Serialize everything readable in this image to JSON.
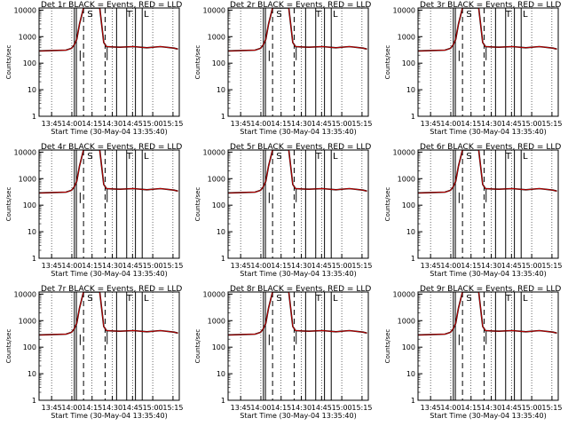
{
  "chart_data": [
    {
      "type": "line",
      "title": "Det 1r BLACK = Events, RED = LLD",
      "xlabel": "Start Time (30-May-04 13:35:40)",
      "ylabel": "Counts/sec",
      "x_tick_labels": [
        "13:45",
        "14:00",
        "14:15",
        "14:30",
        "14:45",
        "15:00",
        "15:15"
      ],
      "y_tick_labels": [
        "1",
        "10",
        "100",
        "1000",
        "10000"
      ],
      "scale": "log",
      "ylim": [
        1,
        12000
      ],
      "xlim_minutes_range": [
        "13:35:40",
        "15:20"
      ],
      "markers": [
        {
          "label": "S",
          "time": "14:09"
        },
        {
          "label": "T",
          "time": "14:40"
        },
        {
          "label": "L",
          "time": "14:55"
        }
      ],
      "grid": "dotted vertical lines at tick times",
      "series": [
        {
          "name": "Events",
          "color": "#000000"
        },
        {
          "name": "LLD",
          "color": "#cc0000"
        }
      ]
    },
    {
      "type": "line",
      "title": "Det 2r BLACK = Events, RED = LLD",
      "xlabel": "Start Time (30-May-04 13:35:40)",
      "ylabel": "Counts/sec",
      "x_tick_labels": [
        "13:45",
        "14:00",
        "14:15",
        "14:30",
        "14:45",
        "15:00",
        "15:15"
      ],
      "y_tick_labels": [
        "1",
        "10",
        "100",
        "1000",
        "10000"
      ],
      "scale": "log",
      "ylim": [
        1,
        12000
      ],
      "markers": [
        {
          "label": "S",
          "time": "14:09"
        },
        {
          "label": "T",
          "time": "14:40"
        },
        {
          "label": "L",
          "time": "14:55"
        }
      ],
      "series": [
        {
          "name": "Events",
          "color": "#000000"
        },
        {
          "name": "LLD",
          "color": "#cc0000"
        }
      ]
    },
    {
      "type": "line",
      "title": "Det 3r BLACK = Events, RED = LLD",
      "xlabel": "Start Time (30-May-04 13:35:40)",
      "ylabel": "Counts/sec",
      "x_tick_labels": [
        "13:45",
        "14:00",
        "14:15",
        "14:30",
        "14:45",
        "15:00",
        "15:15"
      ],
      "y_tick_labels": [
        "1",
        "10",
        "100",
        "1000",
        "10000"
      ],
      "scale": "log",
      "ylim": [
        1,
        12000
      ],
      "markers": [
        {
          "label": "S",
          "time": "14:09"
        },
        {
          "label": "T",
          "time": "14:40"
        },
        {
          "label": "L",
          "time": "14:55"
        }
      ],
      "series": [
        {
          "name": "Events",
          "color": "#000000"
        },
        {
          "name": "LLD",
          "color": "#cc0000"
        }
      ]
    },
    {
      "type": "line",
      "title": "Det 4r BLACK = Events, RED = LLD",
      "xlabel": "Start Time (30-May-04 13:35:40)",
      "ylabel": "Counts/sec",
      "x_tick_labels": [
        "13:45",
        "14:00",
        "14:15",
        "14:30",
        "14:45",
        "15:00",
        "15:15"
      ],
      "y_tick_labels": [
        "1",
        "10",
        "100",
        "1000",
        "10000"
      ],
      "scale": "log",
      "ylim": [
        1,
        12000
      ],
      "markers": [
        {
          "label": "S",
          "time": "14:09"
        },
        {
          "label": "T",
          "time": "14:40"
        },
        {
          "label": "L",
          "time": "14:55"
        }
      ],
      "series": [
        {
          "name": "Events",
          "color": "#000000"
        },
        {
          "name": "LLD",
          "color": "#cc0000"
        }
      ]
    },
    {
      "type": "line",
      "title": "Det 5r BLACK = Events, RED = LLD",
      "xlabel": "Start Time (30-May-04 13:35:40)",
      "ylabel": "Counts/sec",
      "x_tick_labels": [
        "13:45",
        "14:00",
        "14:15",
        "14:30",
        "14:45",
        "15:00",
        "15:15"
      ],
      "y_tick_labels": [
        "1",
        "10",
        "100",
        "1000",
        "10000"
      ],
      "scale": "log",
      "ylim": [
        1,
        12000
      ],
      "markers": [
        {
          "label": "S",
          "time": "14:09"
        },
        {
          "label": "T",
          "time": "14:40"
        },
        {
          "label": "L",
          "time": "14:55"
        }
      ],
      "series": [
        {
          "name": "Events",
          "color": "#000000"
        },
        {
          "name": "LLD",
          "color": "#cc0000"
        }
      ]
    },
    {
      "type": "line",
      "title": "Det 6r BLACK = Events, RED = LLD",
      "xlabel": "Start Time (30-May-04 13:35:40)",
      "ylabel": "Counts/sec",
      "x_tick_labels": [
        "13:45",
        "14:00",
        "14:15",
        "14:30",
        "14:45",
        "15:00",
        "15:15"
      ],
      "y_tick_labels": [
        "1",
        "10",
        "100",
        "1000",
        "10000"
      ],
      "scale": "log",
      "ylim": [
        1,
        12000
      ],
      "markers": [
        {
          "label": "S",
          "time": "14:09"
        },
        {
          "label": "T",
          "time": "14:40"
        },
        {
          "label": "L",
          "time": "14:55"
        }
      ],
      "series": [
        {
          "name": "Events",
          "color": "#000000"
        },
        {
          "name": "LLD",
          "color": "#cc0000"
        }
      ]
    },
    {
      "type": "line",
      "title": "Det 7r BLACK = Events, RED = LLD",
      "xlabel": "Start Time (30-May-04 13:35:40)",
      "ylabel": "Counts/sec",
      "x_tick_labels": [
        "13:45",
        "14:00",
        "14:15",
        "14:30",
        "14:45",
        "15:00",
        "15:15"
      ],
      "y_tick_labels": [
        "1",
        "10",
        "100",
        "1000",
        "10000"
      ],
      "scale": "log",
      "ylim": [
        1,
        12000
      ],
      "markers": [
        {
          "label": "S",
          "time": "14:09"
        },
        {
          "label": "T",
          "time": "14:40"
        },
        {
          "label": "L",
          "time": "14:55"
        }
      ],
      "series": [
        {
          "name": "Events",
          "color": "#000000"
        },
        {
          "name": "LLD",
          "color": "#cc0000"
        }
      ]
    },
    {
      "type": "line",
      "title": "Det 8r BLACK = Events, RED = LLD",
      "xlabel": "Start Time (30-May-04 13:35:40)",
      "ylabel": "Counts/sec",
      "x_tick_labels": [
        "13:45",
        "14:00",
        "14:15",
        "14:30",
        "14:45",
        "15:00",
        "15:15"
      ],
      "y_tick_labels": [
        "1",
        "10",
        "100",
        "1000",
        "10000"
      ],
      "scale": "log",
      "ylim": [
        1,
        12000
      ],
      "markers": [
        {
          "label": "S",
          "time": "14:09"
        },
        {
          "label": "T",
          "time": "14:40"
        },
        {
          "label": "L",
          "time": "14:55"
        }
      ],
      "series": [
        {
          "name": "Events",
          "color": "#000000"
        },
        {
          "name": "LLD",
          "color": "#cc0000"
        }
      ]
    },
    {
      "type": "line",
      "title": "Det 9r BLACK = Events, RED = LLD",
      "xlabel": "Start Time (30-May-04 13:35:40)",
      "ylabel": "Counts/sec",
      "x_tick_labels": [
        "13:45",
        "14:00",
        "14:15",
        "14:30",
        "14:45",
        "15:00",
        "15:15"
      ],
      "y_tick_labels": [
        "1",
        "10",
        "100",
        "1000",
        "10000"
      ],
      "scale": "log",
      "ylim": [
        1,
        12000
      ],
      "markers": [
        {
          "label": "S",
          "time": "14:09"
        },
        {
          "label": "T",
          "time": "14:40"
        },
        {
          "label": "L",
          "time": "14:55"
        }
      ],
      "series": [
        {
          "name": "Events",
          "color": "#000000"
        },
        {
          "name": "LLD",
          "color": "#cc0000"
        }
      ]
    }
  ],
  "profile": {
    "x_minutes_from_13_35_40": [
      0,
      10,
      20,
      24,
      26,
      28,
      30,
      33,
      36,
      39,
      42,
      45,
      48,
      50,
      55,
      60,
      70,
      80,
      90,
      100,
      103
    ],
    "counts_per_sec": [
      290,
      300,
      310,
      360,
      480,
      800,
      3000,
      12000,
      12000,
      12000,
      12000,
      12000,
      600,
      420,
      410,
      400,
      420,
      380,
      420,
      370,
      340
    ]
  },
  "vertical_lines_minutes": {
    "solid": [
      26.2,
      27.7,
      57.5,
      65.0,
      71.5,
      76.5
    ],
    "dashed": [
      33.0,
      49.0
    ],
    "dotted": [
      9.3,
      24.3,
      39.3,
      54.3,
      69.3,
      84.3,
      99.3
    ]
  }
}
